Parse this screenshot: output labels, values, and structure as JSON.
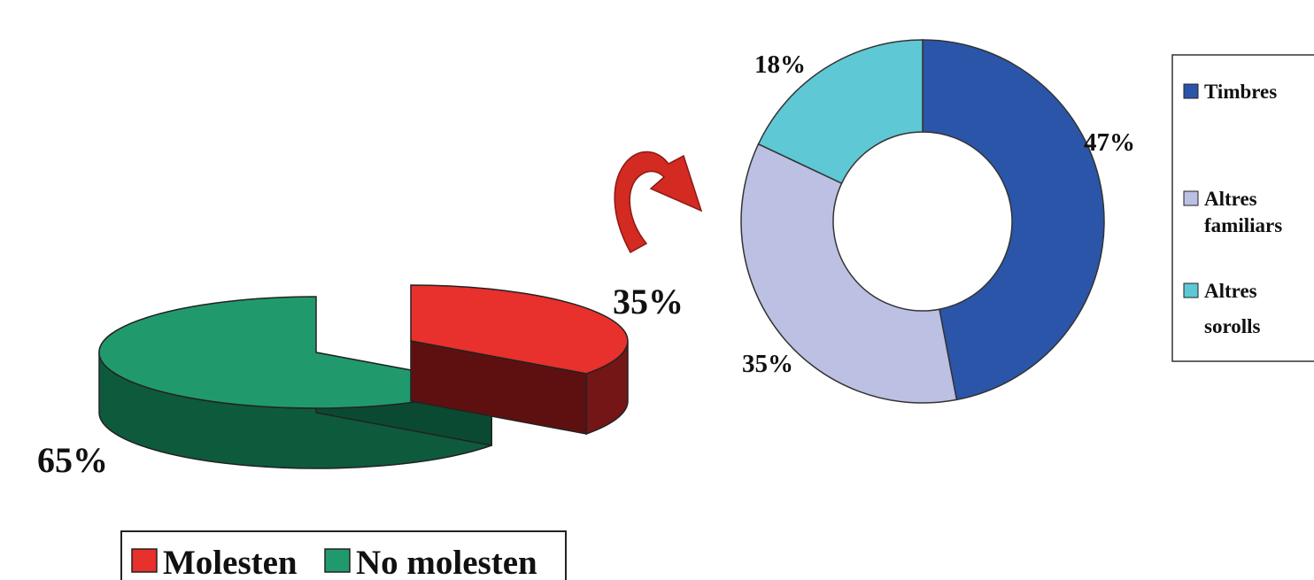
{
  "chart_data": [
    {
      "type": "pie",
      "categories": [
        "Molesten",
        "No molesten"
      ],
      "values": [
        35,
        65
      ],
      "labels": [
        "35%",
        "65%"
      ],
      "colors": [
        "#e8302c",
        "#209a6c"
      ],
      "legend": {
        "placement": "bottom",
        "items": [
          {
            "label": "Molesten",
            "color": "#e8302c"
          },
          {
            "label": "No molesten",
            "color": "#209a6c"
          }
        ]
      }
    },
    {
      "type": "pie",
      "style": "donut",
      "categories": [
        "Timbres",
        "Altres familiars",
        "Altres sorolls"
      ],
      "values": [
        47,
        35,
        18
      ],
      "labels": [
        "47%",
        "35%",
        "18%"
      ],
      "colors": [
        "#2b55a8",
        "#bcc0e2",
        "#5ec8d4"
      ],
      "legend": {
        "placement": "right",
        "items": [
          {
            "label_lines": [
              "Timbres"
            ],
            "color": "#2b55a8"
          },
          {
            "label_lines": [
              "Altres",
              "familiars"
            ],
            "color": "#bcc0e2"
          },
          {
            "label_lines": [
              "Altres",
              "sorolls"
            ],
            "color": "#5ec8d4"
          }
        ]
      }
    }
  ]
}
